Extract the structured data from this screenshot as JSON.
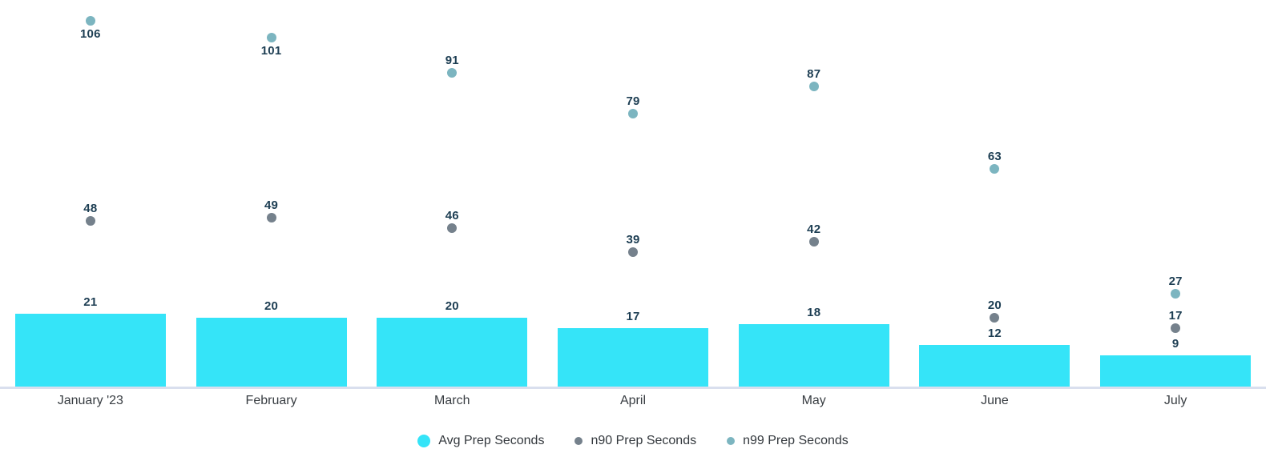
{
  "chart_data": {
    "type": "bar",
    "title": "",
    "xlabel": "",
    "ylabel": "",
    "categories": [
      "January '23",
      "February",
      "March",
      "April",
      "May",
      "June",
      "July"
    ],
    "series": [
      {
        "name": "Avg Prep Seconds",
        "type": "bar",
        "color": "#35e4f8",
        "values": [
          21,
          20,
          20,
          17,
          18,
          12,
          9
        ]
      },
      {
        "name": "n90 Prep Seconds",
        "type": "point",
        "color": "#75818c",
        "values": [
          48,
          49,
          46,
          39,
          42,
          20,
          17
        ]
      },
      {
        "name": "n99 Prep Seconds",
        "type": "point",
        "color": "#7cb5c0",
        "values": [
          106,
          101,
          91,
          79,
          87,
          63,
          27
        ]
      }
    ],
    "ylim": [
      0,
      112
    ],
    "grid": false,
    "value_labels": true,
    "legend_position": "bottom"
  },
  "colors": {
    "value_label": "#1d3e53",
    "axis_label": "#383d42",
    "legend_text": "#33383d",
    "baseline": "#d9dfee",
    "background": "#ffffff"
  }
}
